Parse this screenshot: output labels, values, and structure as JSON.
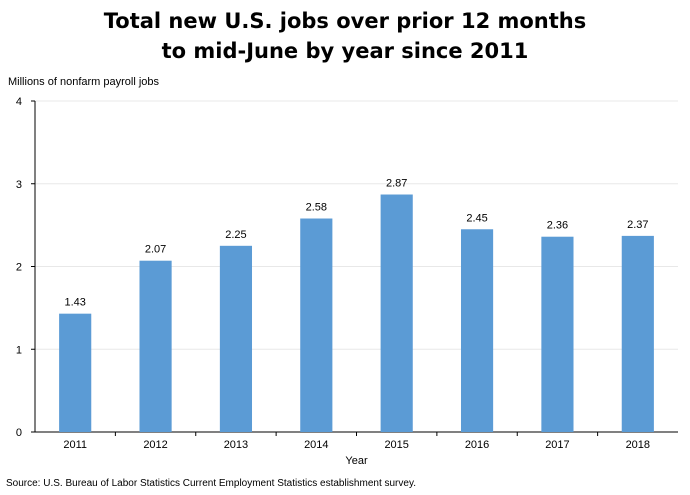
{
  "chart_data": {
    "type": "bar",
    "title_lines": [
      "Total new U.S. jobs over prior 12 months",
      "to mid-June by year since 2011"
    ],
    "ylabel": "Millions of nonfarm payroll jobs",
    "xlabel": "Year",
    "categories": [
      "2011",
      "2012",
      "2013",
      "2014",
      "2015",
      "2016",
      "2017",
      "2018"
    ],
    "values": [
      1.43,
      2.07,
      2.25,
      2.58,
      2.87,
      2.45,
      2.36,
      2.37
    ],
    "data_labels": [
      "1.43",
      "2.07",
      "2.25",
      "2.58",
      "2.87",
      "2.45",
      "2.36",
      "2.37"
    ],
    "ylim": [
      0,
      4
    ],
    "yticks": [
      "0",
      "1",
      "2",
      "3",
      "4"
    ],
    "bar_color": "#5b9bd5",
    "grid": true,
    "legend": "none"
  },
  "source": "Source: U.S. Bureau of Labor Statistics Current Employment Statistics establishment survey."
}
